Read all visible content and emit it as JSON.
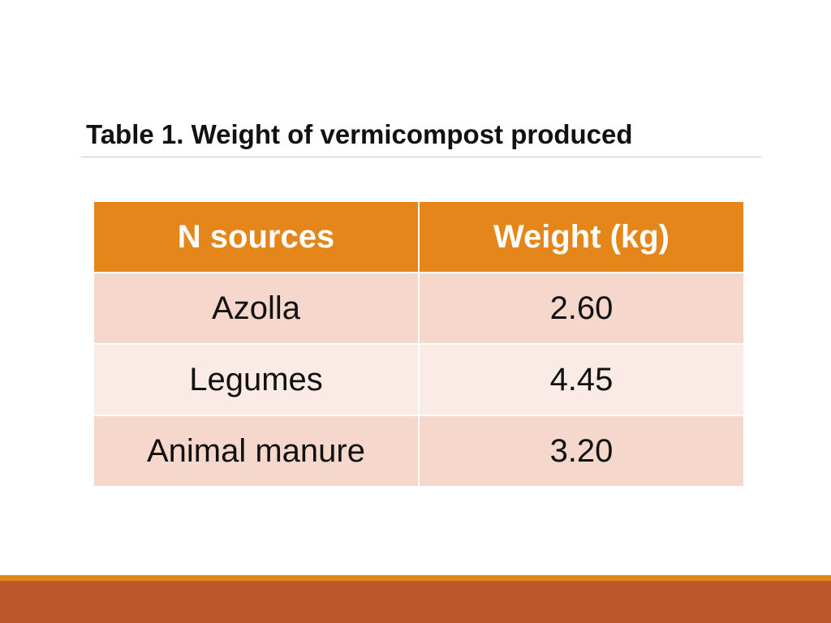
{
  "slide": {
    "title": "Table 1. Weight of vermicompost produced"
  },
  "table": {
    "headers": [
      "N sources",
      "Weight (kg)"
    ],
    "rows": [
      [
        "Azolla",
        "2.60"
      ],
      [
        "Legumes",
        "4.45"
      ],
      [
        "Animal manure",
        "3.20"
      ]
    ]
  },
  "colors": {
    "header_fill": "#e5861a",
    "row_fill_dark": "#f5d7cc",
    "row_fill_light": "#faebe6",
    "footer_accent": "#e5861a",
    "footer_band": "#bd582c"
  }
}
